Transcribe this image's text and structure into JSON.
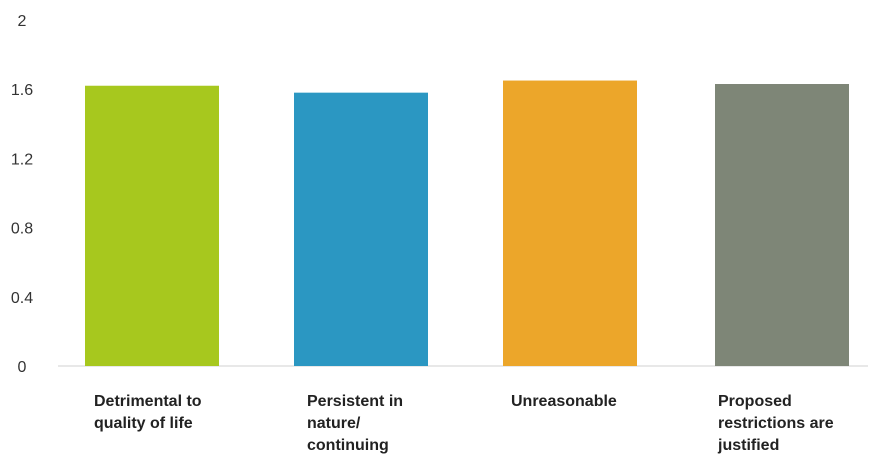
{
  "chart_data": {
    "type": "bar",
    "title": "",
    "xlabel": "",
    "ylabel": "",
    "ylim": [
      0,
      2
    ],
    "yticks": [
      "0",
      "0.4",
      "0.8",
      "1.2",
      "1.6",
      "2"
    ],
    "grid": false,
    "categories": [
      [
        "Detrimental to",
        "quality of life"
      ],
      [
        "Persistent in",
        "nature/",
        "continuing"
      ],
      [
        "Unreasonable"
      ],
      [
        "Proposed",
        "restrictions are",
        "justified"
      ]
    ],
    "values": [
      1.62,
      1.58,
      1.65,
      1.63
    ],
    "colors": [
      "#a7c81e",
      "#2b97c2",
      "#eca62a",
      "#7e8677"
    ]
  }
}
